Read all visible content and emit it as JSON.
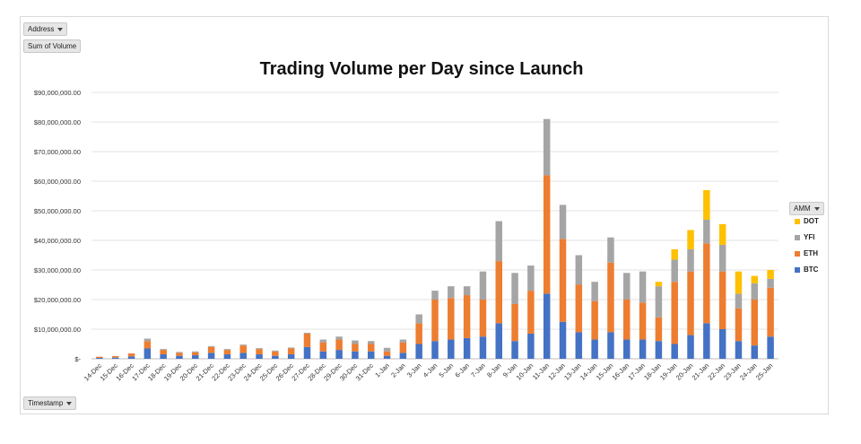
{
  "filters": {
    "address_label": "Address",
    "measure_label": "Sum of Volume",
    "amm_label": "AMM",
    "timestamp_label": "Timestamp"
  },
  "colors": {
    "BTC": "#4472c4",
    "ETH": "#ed7d31",
    "YFI": "#a5a5a5",
    "DOT": "#ffc000"
  },
  "chart_data": {
    "type": "bar",
    "stacked": true,
    "title": "Trading Volume per Day since Launch",
    "ylim": [
      0,
      90000000
    ],
    "ytick_labels": [
      "$-",
      "$10,000,000.00",
      "$20,000,000.00",
      "$30,000,000.00",
      "$40,000,000.00",
      "$50,000,000.00",
      "$60,000,000.00",
      "$70,000,000.00",
      "$80,000,000.00",
      "$90,000,000.00"
    ],
    "grid": true,
    "legend_position": "right",
    "legend_order": [
      "DOT",
      "YFI",
      "ETH",
      "BTC"
    ],
    "categories": [
      "14-Dec",
      "15-Dec",
      "16-Dec",
      "17-Dec",
      "18-Dec",
      "19-Dec",
      "20-Dec",
      "21-Dec",
      "22-Dec",
      "23-Dec",
      "24-Dec",
      "25-Dec",
      "26-Dec",
      "27-Dec",
      "28-Dec",
      "29-Dec",
      "30-Dec",
      "31-Dec",
      "1-Jan",
      "2-Jan",
      "3-Jan",
      "4-Jan",
      "5-Jan",
      "6-Jan",
      "7-Jan",
      "8-Jan",
      "9-Jan",
      "10-Jan",
      "11-Jan",
      "12-Jan",
      "13-Jan",
      "14-Jan",
      "15-Jan",
      "16-Jan",
      "17-Jan",
      "18-Jan",
      "19-Jan",
      "20-Jan",
      "21-Jan",
      "22-Jan",
      "23-Jan",
      "24-Jan",
      "25-Jan"
    ],
    "series": [
      {
        "name": "BTC",
        "values": [
          300000,
          400000,
          800000,
          3500000,
          1500000,
          1000000,
          1200000,
          2000000,
          1500000,
          2000000,
          1500000,
          1000000,
          1500000,
          4000000,
          2500000,
          3000000,
          2500000,
          2500000,
          1000000,
          2000000,
          5000000,
          6000000,
          6500000,
          7000000,
          7500000,
          12000000,
          6000000,
          8500000,
          22000000,
          12500000,
          9000000,
          6500000,
          9000000,
          6500000,
          6500000,
          6000000,
          5000000,
          8000000,
          12000000,
          10000000,
          6000000,
          4500000,
          7500000
        ]
      },
      {
        "name": "ETH",
        "values": [
          400000,
          500000,
          1000000,
          2500000,
          1500000,
          1000000,
          1000000,
          2000000,
          1500000,
          2500000,
          1800000,
          1500000,
          2000000,
          4500000,
          3000000,
          3500000,
          2500000,
          2500000,
          1500000,
          3500000,
          7000000,
          14000000,
          14000000,
          14500000,
          12500000,
          21000000,
          12500000,
          14500000,
          40000000,
          28000000,
          16000000,
          13000000,
          23500000,
          13500000,
          12500000,
          8000000,
          21000000,
          21500000,
          27000000,
          19500000,
          11000000,
          15500000,
          16500000
        ]
      },
      {
        "name": "YFI",
        "values": [
          0,
          0,
          0,
          800000,
          300000,
          300000,
          300000,
          300000,
          300000,
          300000,
          300000,
          300000,
          300000,
          300000,
          1000000,
          1000000,
          1200000,
          1000000,
          1200000,
          1000000,
          3000000,
          3000000,
          4000000,
          3000000,
          9500000,
          13500000,
          10500000,
          8500000,
          19000000,
          11500000,
          10000000,
          6500000,
          8500000,
          9000000,
          10500000,
          10500000,
          7500000,
          7500000,
          8000000,
          9000000,
          5000000,
          5500000,
          3000000
        ]
      },
      {
        "name": "DOT",
        "values": [
          0,
          0,
          0,
          0,
          0,
          0,
          0,
          0,
          0,
          0,
          0,
          0,
          0,
          0,
          0,
          0,
          0,
          0,
          0,
          0,
          0,
          0,
          0,
          0,
          0,
          0,
          0,
          0,
          0,
          0,
          0,
          0,
          0,
          0,
          0,
          1500000,
          3500000,
          6500000,
          10000000,
          7000000,
          7500000,
          2500000,
          3000000
        ]
      }
    ]
  }
}
